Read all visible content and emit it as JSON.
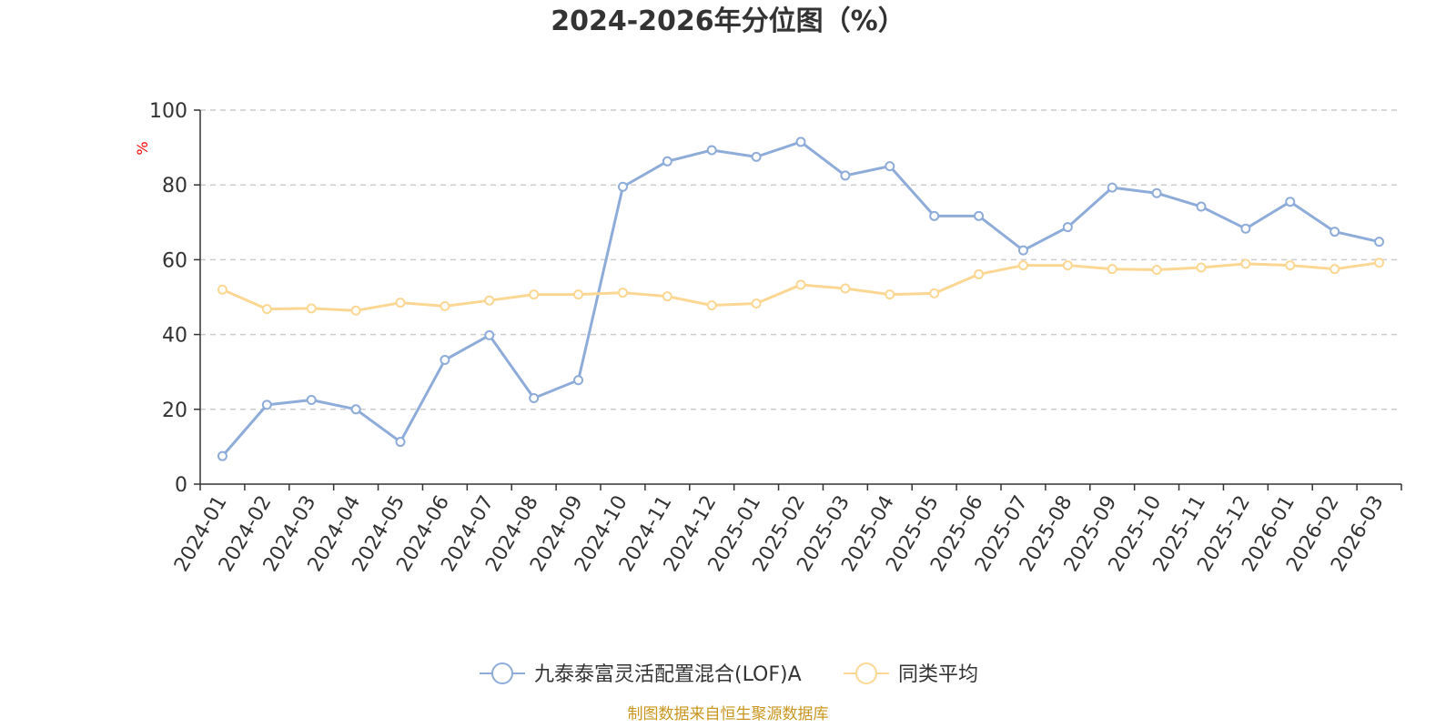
{
  "chart_data": {
    "type": "line",
    "title": "2024-2026年分位图（%）",
    "ylabel": "%",
    "ylim": [
      0,
      100
    ],
    "yticks": [
      0,
      20,
      40,
      60,
      80,
      100
    ],
    "grid": true,
    "legend_position": "bottom",
    "categories": [
      "2024-01",
      "2024-02",
      "2024-03",
      "2024-04",
      "2024-05",
      "2024-06",
      "2024-07",
      "2024-08",
      "2024-09",
      "2024-10",
      "2024-11",
      "2024-12",
      "2025-01",
      "2025-02",
      "2025-03",
      "2025-04",
      "2025-05",
      "2025-06",
      "2025-07",
      "2025-08",
      "2025-09",
      "2025-10",
      "2025-11",
      "2025-12",
      "2026-01",
      "2026-02",
      "2026-03"
    ],
    "series": [
      {
        "name": "九泰泰富灵活配置混合(LOF)A",
        "color": "#8eacd9",
        "values": [
          7.5,
          21.2,
          22.5,
          20.0,
          11.3,
          33.2,
          39.8,
          23.0,
          27.8,
          79.5,
          86.3,
          89.3,
          87.5,
          91.5,
          82.5,
          85.0,
          71.7,
          71.7,
          62.5,
          68.7,
          79.3,
          77.8,
          74.2,
          68.3,
          75.5,
          67.5,
          64.8
        ]
      },
      {
        "name": "同类平均",
        "color": "#fcd793",
        "values": [
          52.0,
          46.8,
          47.0,
          46.4,
          48.5,
          47.6,
          49.1,
          50.7,
          50.7,
          51.2,
          50.2,
          47.8,
          48.3,
          53.3,
          52.3,
          50.7,
          51.0,
          56.1,
          58.5,
          58.5,
          57.5,
          57.3,
          57.9,
          58.9,
          58.5,
          57.5,
          59.2
        ]
      }
    ],
    "source": "制图数据来自恒生聚源数据库"
  }
}
